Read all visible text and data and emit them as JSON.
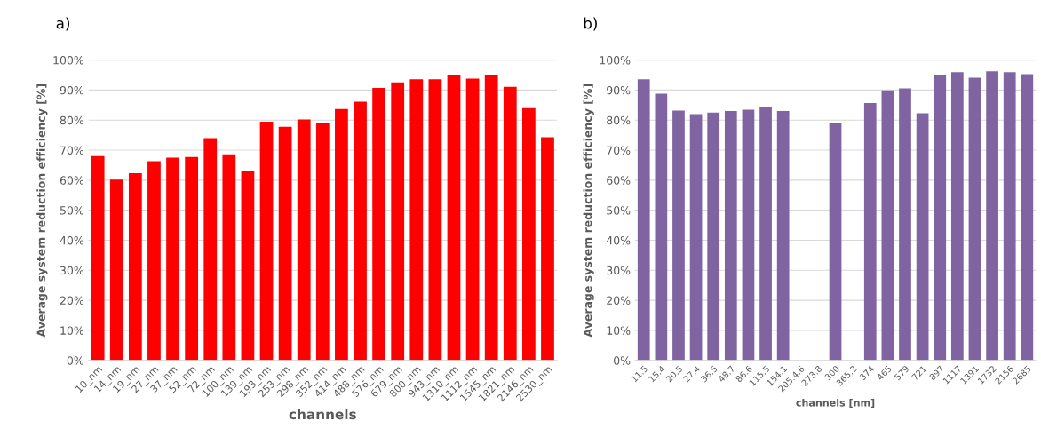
{
  "chart_data": [
    {
      "type": "bar",
      "title": "a)",
      "xlabel": "channels",
      "ylabel": "Average system reduction efficiency [%]",
      "categories": [
        "10_nm",
        "14_nm",
        "19_nm",
        "27_nm",
        "37_nm",
        "52_nm",
        "72_nm",
        "100_nm",
        "139_nm",
        "193_nm",
        "253_nm",
        "298_nm",
        "352_nm",
        "414_nm",
        "488_nm",
        "576_nm",
        "679_nm",
        "800_nm",
        "943_nm",
        "1310_nm",
        "1112_nm",
        "1545_nm",
        "1821_nm",
        "2146_nm",
        "2530_nm"
      ],
      "values": [
        68,
        60.2,
        62.3,
        66.3,
        67.5,
        67.7,
        74,
        68.6,
        63,
        79.5,
        77.8,
        80.2,
        78.9,
        83.7,
        86.1,
        90.7,
        92.6,
        93.6,
        93.6,
        95,
        93.8,
        95,
        91.1,
        84,
        74.3
      ],
      "color": "#ff0000",
      "ylim": [
        0,
        100
      ],
      "yticks": [
        {
          "value": 0,
          "label": "0%"
        },
        {
          "value": 10,
          "label": "10%"
        },
        {
          "value": 20,
          "label": "20%"
        },
        {
          "value": 30,
          "label": "30%"
        },
        {
          "value": 40,
          "label": "40%"
        },
        {
          "value": 50,
          "label": "50%"
        },
        {
          "value": 60,
          "label": "60%"
        },
        {
          "value": 70,
          "label": "70%"
        },
        {
          "value": 80,
          "label": "80%"
        },
        {
          "value": 90,
          "label": "90%"
        },
        {
          "value": 100,
          "label": "100%"
        }
      ],
      "grid": "y"
    },
    {
      "type": "bar",
      "title": "b)",
      "xlabel": "channels [nm]",
      "ylabel": "Average system reduction efficiency [%]",
      "categories": [
        "11.5",
        "15.4",
        "20.5",
        "27.4",
        "36.5",
        "48.7",
        "86.6",
        "115.5",
        "154.1",
        "205.4.6",
        "273.8",
        "300",
        "365.2",
        "374",
        "465",
        "579",
        "721",
        "897",
        "1117",
        "1391",
        "1732",
        "2156",
        "2685"
      ],
      "values": [
        93.6,
        88.8,
        83.2,
        82,
        82.5,
        83,
        83.5,
        84.2,
        83,
        null,
        null,
        79.1,
        null,
        85.7,
        89.9,
        90.6,
        82.3,
        94.9,
        96,
        94.1,
        96.3,
        96,
        95.3
      ],
      "color": "#8064a2",
      "ylim": [
        0,
        100
      ],
      "yticks": [
        {
          "value": 0,
          "label": "0%"
        },
        {
          "value": 10,
          "label": "10%"
        },
        {
          "value": 20,
          "label": "20%"
        },
        {
          "value": 30,
          "label": "30%"
        },
        {
          "value": 40,
          "label": "40%"
        },
        {
          "value": 50,
          "label": "50%"
        },
        {
          "value": 60,
          "label": "60%"
        },
        {
          "value": 70,
          "label": "70%"
        },
        {
          "value": 80,
          "label": "80%"
        },
        {
          "value": 90,
          "label": "90%"
        },
        {
          "value": 100,
          "label": "100%"
        }
      ],
      "grid": "y"
    }
  ]
}
